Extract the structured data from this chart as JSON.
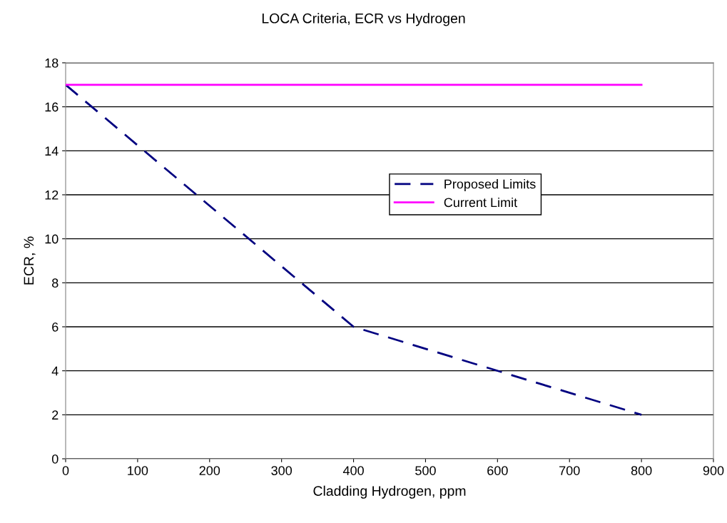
{
  "chart_data": {
    "type": "line",
    "title": "LOCA Criteria, ECR vs Hydrogen",
    "xlabel": "Cladding Hydrogen, ppm",
    "ylabel": "ECR, %",
    "series": [
      {
        "name": "Proposed Limits",
        "color": "#000080",
        "x": [
          0,
          400,
          800
        ],
        "values": [
          17,
          6,
          2
        ],
        "line_style": "dashed"
      },
      {
        "name": "Current Limit",
        "color": "#ff00ff",
        "x": [
          0,
          800
        ],
        "values": [
          17,
          17
        ],
        "line_style": "solid"
      }
    ],
    "xlim": [
      0,
      900
    ],
    "xticks": [
      0,
      100,
      200,
      300,
      400,
      500,
      600,
      700,
      800,
      900
    ],
    "ylim": [
      0,
      18
    ],
    "yticks": [
      0,
      2,
      4,
      6,
      8,
      10,
      12,
      14,
      16,
      18
    ],
    "grid": "y",
    "legend": "right",
    "marker": "none"
  }
}
